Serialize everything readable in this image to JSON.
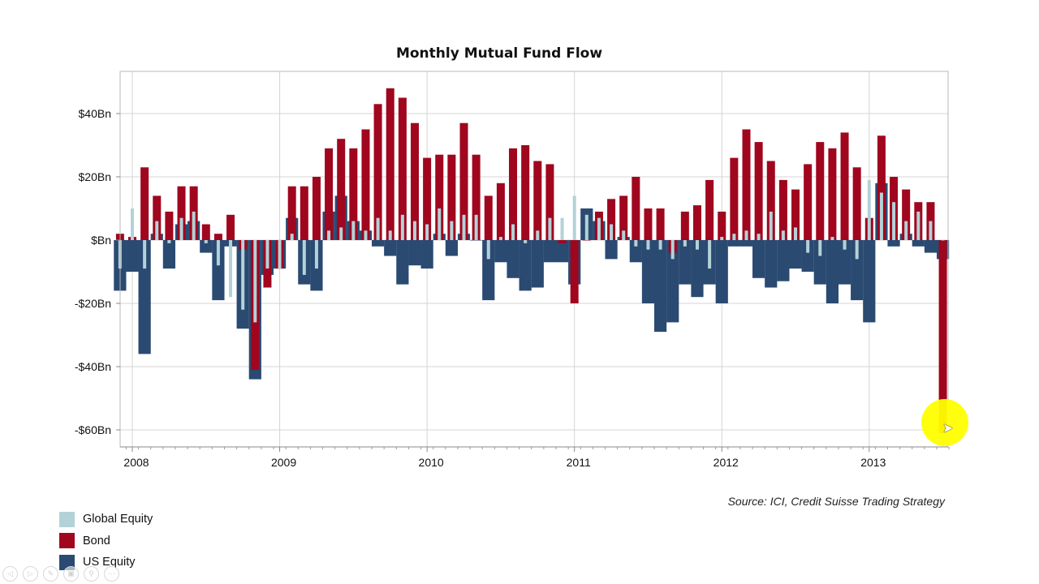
{
  "chart_data": {
    "type": "bar",
    "title": "Monthly Mutual Fund Flow",
    "xlabel": "",
    "ylabel": "",
    "ylim": [
      -65,
      53
    ],
    "yticks": [
      40,
      20,
      0,
      -20,
      -40,
      -60
    ],
    "ytick_labels": [
      "$40Bn",
      "$20Bn",
      "$Bn",
      "-$20Bn",
      "-$40Bn",
      "-$60Bn"
    ],
    "xtick_labels": [
      "2008",
      "2009",
      "2010",
      "2011",
      "2012",
      "2013"
    ],
    "grid": true,
    "legend_position": "bottom-left",
    "colors": {
      "global_equity": "#b3d2d8",
      "bond": "#a0061e",
      "us_equity": "#2a4a72"
    },
    "categories": [
      "Dec-07",
      "Jan-08",
      "Feb-08",
      "Mar-08",
      "Apr-08",
      "May-08",
      "Jun-08",
      "Jul-08",
      "Aug-08",
      "Sep-08",
      "Oct-08",
      "Nov-08",
      "Dec-08",
      "Jan-09",
      "Feb-09",
      "Mar-09",
      "Apr-09",
      "May-09",
      "Jun-09",
      "Jul-09",
      "Aug-09",
      "Sep-09",
      "Oct-09",
      "Nov-09",
      "Dec-09",
      "Jan-10",
      "Feb-10",
      "Mar-10",
      "Apr-10",
      "May-10",
      "Jun-10",
      "Jul-10",
      "Aug-10",
      "Sep-10",
      "Oct-10",
      "Nov-10",
      "Dec-10",
      "Jan-11",
      "Feb-11",
      "Mar-11",
      "Apr-11",
      "May-11",
      "Jun-11",
      "Jul-11",
      "Aug-11",
      "Sep-11",
      "Oct-11",
      "Nov-11",
      "Dec-11",
      "Jan-12",
      "Feb-12",
      "Mar-12",
      "Apr-12",
      "May-12",
      "Jun-12",
      "Jul-12",
      "Aug-12",
      "Sep-12",
      "Oct-12",
      "Nov-12",
      "Dec-12",
      "Jan-13",
      "Feb-13",
      "Mar-13",
      "Apr-13",
      "May-13",
      "Jun-13",
      "Jul-13"
    ],
    "series": [
      {
        "name": "US Equity",
        "values": [
          -16,
          -10,
          -36,
          2,
          -9,
          5,
          6,
          -4,
          -19,
          -2,
          -28,
          -44,
          -11,
          -9,
          7,
          -14,
          -16,
          9,
          14,
          6,
          3,
          -2,
          -5,
          -14,
          -8,
          -9,
          2,
          -5,
          2,
          0,
          -19,
          -7,
          -12,
          -16,
          -15,
          -7,
          -7,
          -14,
          10,
          6,
          -6,
          1,
          -7,
          -20,
          -29,
          -26,
          -14,
          -18,
          -14,
          -20,
          -2,
          -2,
          -12,
          -15,
          -13,
          -9,
          -10,
          -14,
          -20,
          -14,
          -19,
          -26,
          18,
          -2,
          2,
          -2,
          -4,
          -6
        ]
      },
      {
        "name": "Bond",
        "values": [
          2,
          1,
          23,
          14,
          9,
          17,
          17,
          5,
          2,
          8,
          -3,
          -41,
          -15,
          -9,
          17,
          17,
          20,
          29,
          32,
          29,
          35,
          43,
          48,
          45,
          37,
          26,
          27,
          27,
          37,
          27,
          14,
          18,
          29,
          30,
          25,
          24,
          -1,
          -20,
          0,
          9,
          13,
          14,
          20,
          10,
          10,
          -4,
          9,
          11,
          19,
          9,
          26,
          35,
          31,
          25,
          19,
          16,
          24,
          31,
          29,
          34,
          23,
          7,
          33,
          20,
          16,
          12,
          12,
          -61
        ]
      },
      {
        "name": "Global Equity",
        "values": [
          -9,
          10,
          -9,
          6,
          -1,
          7,
          9,
          -1,
          -8,
          -18,
          -22,
          -26,
          -9,
          -9,
          2,
          -11,
          -9,
          3,
          4,
          6,
          3,
          7,
          3,
          8,
          6,
          5,
          10,
          6,
          8,
          8,
          -6,
          1,
          5,
          -1,
          3,
          7,
          7,
          14,
          8,
          7,
          5,
          3,
          -2,
          -3,
          -3,
          -6,
          -2,
          -3,
          -9,
          1,
          2,
          3,
          2,
          9,
          3,
          4,
          -4,
          -5,
          1,
          -3,
          -6,
          19,
          15,
          12,
          6,
          9,
          6,
          0
        ]
      }
    ]
  },
  "source_text": "Source: ICI, Credit Suisse Trading Strategy",
  "legend": [
    {
      "label": "Global Equity",
      "color": "#b3d2d8"
    },
    {
      "label": "Bond",
      "color": "#a0061e"
    },
    {
      "label": "US Equity",
      "color": "#2a4a72"
    }
  ],
  "controls": [
    {
      "name": "previous-slide",
      "glyph": "◁"
    },
    {
      "name": "next-slide",
      "glyph": "▷"
    },
    {
      "name": "pen",
      "glyph": "✎"
    },
    {
      "name": "slides",
      "glyph": "▣"
    },
    {
      "name": "zoom",
      "glyph": "⚲"
    },
    {
      "name": "more",
      "glyph": "⋯"
    }
  ]
}
